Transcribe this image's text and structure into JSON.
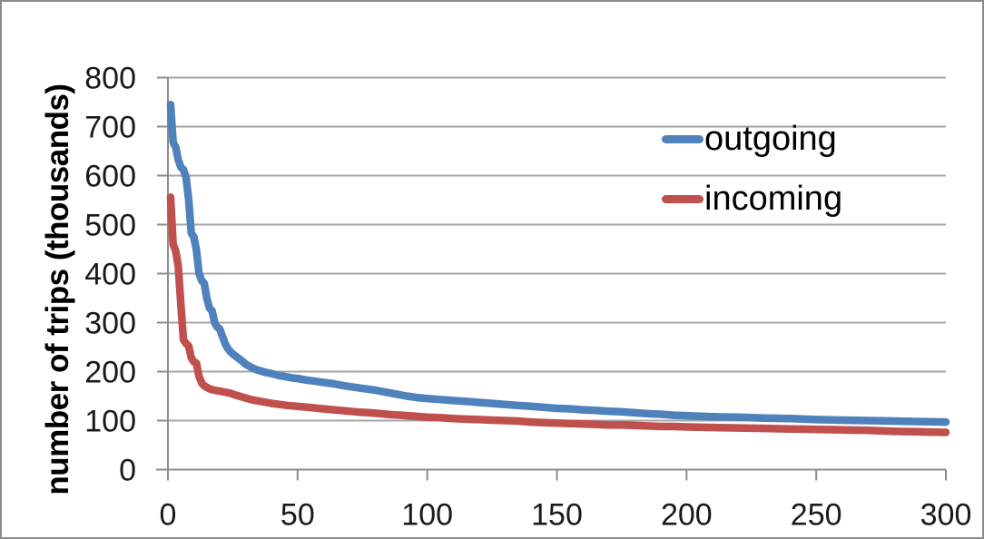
{
  "chart_data": {
    "type": "line",
    "title": "",
    "xlabel": "",
    "ylabel": "number of trips (thousands)",
    "xlim": [
      0,
      300
    ],
    "ylim": [
      0,
      800
    ],
    "x_ticks": [
      0,
      50,
      100,
      150,
      200,
      250,
      300
    ],
    "y_ticks": [
      0,
      100,
      200,
      300,
      400,
      500,
      600,
      700,
      800
    ],
    "grid": "horizontal-only",
    "legend_position": "inside-top-right",
    "series": [
      {
        "name": "outgoing",
        "color": "#4F81BD",
        "points": [
          [
            1,
            745
          ],
          [
            2,
            668
          ],
          [
            3,
            658
          ],
          [
            4,
            632
          ],
          [
            5,
            617
          ],
          [
            6,
            612
          ],
          [
            7,
            596
          ],
          [
            8,
            550
          ],
          [
            9,
            483
          ],
          [
            10,
            474
          ],
          [
            11,
            448
          ],
          [
            12,
            400
          ],
          [
            13,
            386
          ],
          [
            14,
            380
          ],
          [
            15,
            350
          ],
          [
            16,
            330
          ],
          [
            17,
            324
          ],
          [
            18,
            300
          ],
          [
            19,
            291
          ],
          [
            20,
            287
          ],
          [
            21,
            272
          ],
          [
            22,
            258
          ],
          [
            23,
            248
          ],
          [
            24,
            241
          ],
          [
            25,
            236
          ],
          [
            26,
            232
          ],
          [
            27,
            228
          ],
          [
            28,
            224
          ],
          [
            30,
            215
          ],
          [
            32,
            209
          ],
          [
            34,
            204
          ],
          [
            36,
            201
          ],
          [
            38,
            198
          ],
          [
            40,
            196
          ],
          [
            42,
            193
          ],
          [
            44,
            191
          ],
          [
            46,
            189
          ],
          [
            48,
            187
          ],
          [
            50,
            186
          ],
          [
            53,
            183
          ],
          [
            56,
            181
          ],
          [
            60,
            178
          ],
          [
            64,
            175
          ],
          [
            68,
            171
          ],
          [
            72,
            168
          ],
          [
            76,
            165
          ],
          [
            80,
            162
          ],
          [
            84,
            158
          ],
          [
            88,
            154
          ],
          [
            92,
            150
          ],
          [
            96,
            147
          ],
          [
            100,
            145
          ],
          [
            105,
            143
          ],
          [
            110,
            141
          ],
          [
            115,
            139
          ],
          [
            120,
            137
          ],
          [
            125,
            135
          ],
          [
            130,
            133
          ],
          [
            135,
            131
          ],
          [
            140,
            129
          ],
          [
            145,
            127
          ],
          [
            150,
            125
          ],
          [
            155,
            124
          ],
          [
            160,
            122
          ],
          [
            165,
            121
          ],
          [
            170,
            119
          ],
          [
            175,
            118
          ],
          [
            180,
            116
          ],
          [
            185,
            114
          ],
          [
            190,
            113
          ],
          [
            195,
            111
          ],
          [
            200,
            110
          ],
          [
            210,
            108
          ],
          [
            220,
            107
          ],
          [
            230,
            105
          ],
          [
            240,
            104
          ],
          [
            250,
            102
          ],
          [
            260,
            101
          ],
          [
            270,
            100
          ],
          [
            280,
            99
          ],
          [
            290,
            98
          ],
          [
            300,
            97
          ]
        ]
      },
      {
        "name": "incoming",
        "color": "#C0504D",
        "points": [
          [
            1,
            556
          ],
          [
            2,
            460
          ],
          [
            3,
            446
          ],
          [
            4,
            415
          ],
          [
            5,
            335
          ],
          [
            6,
            265
          ],
          [
            7,
            257
          ],
          [
            8,
            252
          ],
          [
            9,
            228
          ],
          [
            10,
            220
          ],
          [
            11,
            217
          ],
          [
            12,
            190
          ],
          [
            13,
            177
          ],
          [
            14,
            171
          ],
          [
            15,
            168
          ],
          [
            16,
            165
          ],
          [
            17,
            163
          ],
          [
            18,
            162
          ],
          [
            19,
            161
          ],
          [
            20,
            160
          ],
          [
            22,
            158
          ],
          [
            24,
            156
          ],
          [
            26,
            152
          ],
          [
            28,
            149
          ],
          [
            30,
            146
          ],
          [
            32,
            143
          ],
          [
            34,
            141
          ],
          [
            36,
            139
          ],
          [
            38,
            137
          ],
          [
            40,
            135
          ],
          [
            43,
            133
          ],
          [
            46,
            131
          ],
          [
            50,
            129
          ],
          [
            54,
            127
          ],
          [
            58,
            125
          ],
          [
            62,
            123
          ],
          [
            66,
            121
          ],
          [
            70,
            119
          ],
          [
            74,
            117
          ],
          [
            78,
            116
          ],
          [
            82,
            114
          ],
          [
            86,
            112
          ],
          [
            90,
            111
          ],
          [
            95,
            109
          ],
          [
            100,
            107
          ],
          [
            105,
            106
          ],
          [
            110,
            104
          ],
          [
            115,
            103
          ],
          [
            120,
            102
          ],
          [
            125,
            101
          ],
          [
            130,
            100
          ],
          [
            135,
            99
          ],
          [
            140,
            97
          ],
          [
            145,
            96
          ],
          [
            150,
            95
          ],
          [
            155,
            94
          ],
          [
            160,
            93
          ],
          [
            165,
            92
          ],
          [
            170,
            91
          ],
          [
            175,
            91
          ],
          [
            180,
            90
          ],
          [
            185,
            89
          ],
          [
            190,
            88
          ],
          [
            195,
            88
          ],
          [
            200,
            87
          ],
          [
            210,
            86
          ],
          [
            220,
            85
          ],
          [
            230,
            84
          ],
          [
            240,
            83
          ],
          [
            250,
            82
          ],
          [
            260,
            81
          ],
          [
            270,
            80
          ],
          [
            280,
            78
          ],
          [
            290,
            77
          ],
          [
            300,
            76
          ]
        ]
      }
    ]
  },
  "colors": {
    "background": "#FFFFFF",
    "border": "#8C8C8C",
    "gridline": "#A6A6A6",
    "axis": "#8C8C8C",
    "tick_text": "#1A1A1A"
  }
}
